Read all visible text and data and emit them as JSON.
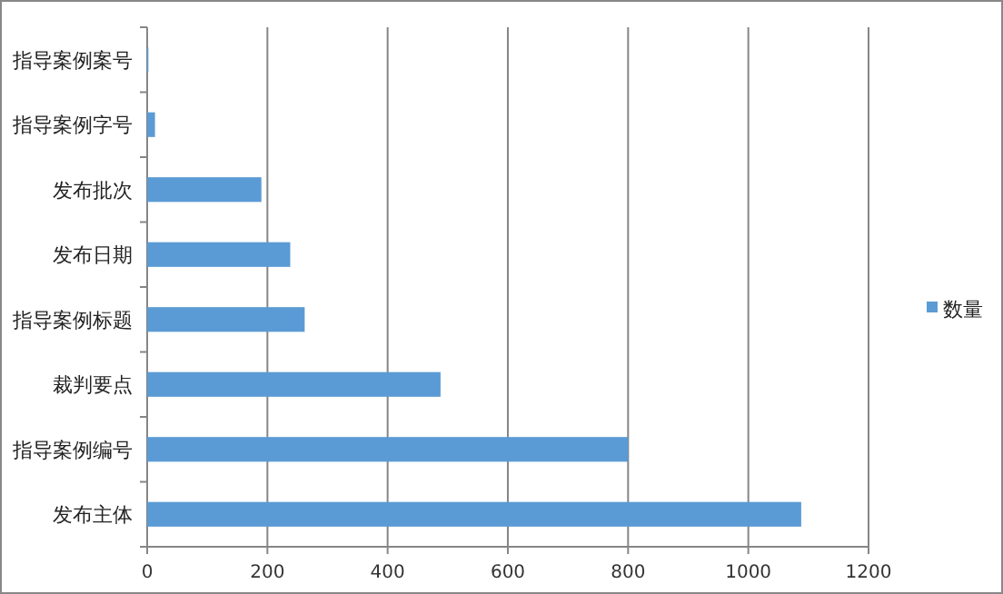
{
  "chart_data": {
    "type": "bar",
    "orientation": "horizontal",
    "categories": [
      "指导案例案号",
      "指导案例字号",
      "发布批次",
      "发布日期",
      "指导案例标题",
      "裁判要点",
      "指导案例编号",
      "发布主体"
    ],
    "series": [
      {
        "name": "数量",
        "color": "#5b9bd5",
        "values": [
          2,
          13,
          190,
          238,
          262,
          488,
          800,
          1088
        ]
      }
    ],
    "xlim": [
      0,
      1200
    ],
    "xticks": [
      0,
      200,
      400,
      600,
      800,
      1000,
      1200
    ],
    "grid": "x",
    "legend": "right"
  }
}
